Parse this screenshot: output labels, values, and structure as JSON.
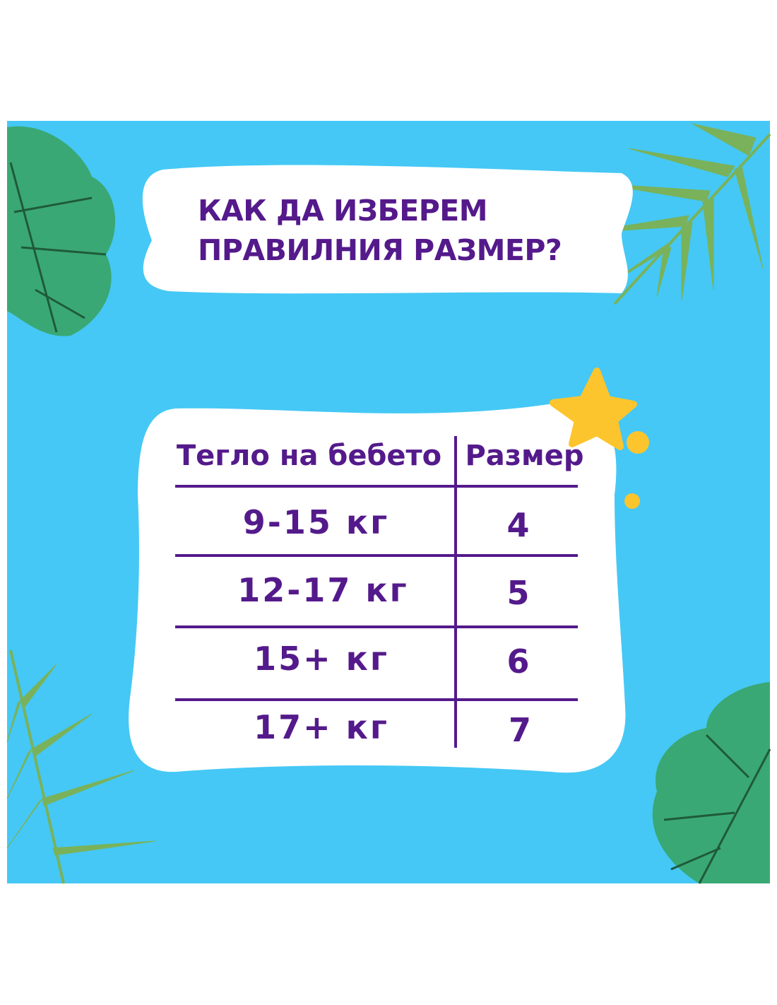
{
  "title": {
    "line1": "КАК ДА ИЗБЕРЕМ",
    "line2": "ПРАВИЛНИЯ РАЗМЕР?"
  },
  "table": {
    "headers": [
      "Тегло на бебето",
      "Размер"
    ],
    "rows": [
      {
        "weight": "9-15 кг",
        "size": "4"
      },
      {
        "weight": "12-17 кг",
        "size": "5"
      },
      {
        "weight": "15+ кг",
        "size": "6"
      },
      {
        "weight": "17+ кг",
        "size": "7"
      }
    ]
  },
  "colors": {
    "background": "#45c8f5",
    "text": "#541a8b",
    "star": "#fdc52d",
    "monstera": "#3aa874",
    "palm": "#79b25a"
  }
}
